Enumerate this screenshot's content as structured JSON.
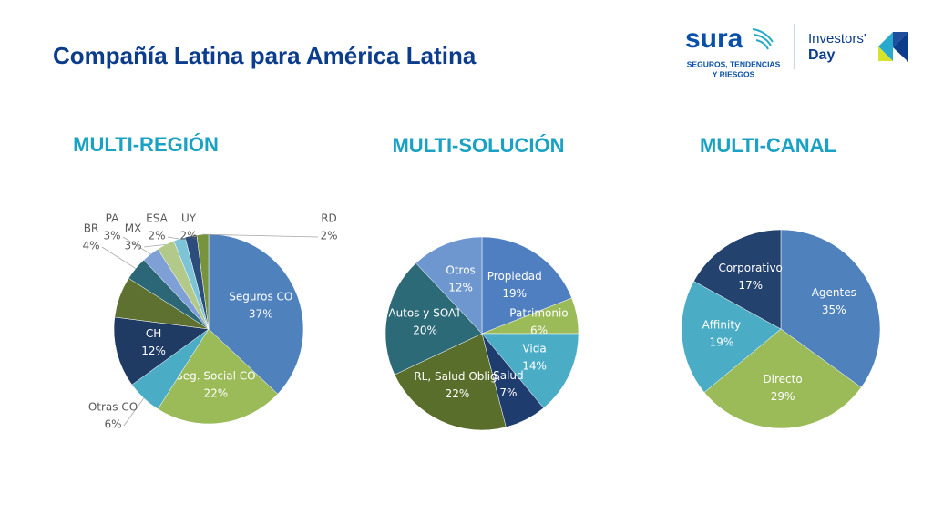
{
  "header": {
    "title": "Compañía Latina para América Latina",
    "logo": "sura",
    "tagline": [
      "SEGUROS, TENDENCIAS",
      "Y RIESGOS"
    ],
    "event": [
      "Investors'",
      "Day"
    ]
  },
  "chart_data": [
    {
      "type": "pie",
      "title": "MULTI-REGIÓN",
      "categories": [
        "Seguros CO",
        "Seg. Social CO",
        "Otras CO",
        "CH",
        null,
        "BR",
        "PA",
        "MX",
        "ESA",
        "UY",
        "RD"
      ],
      "values": [
        37,
        22,
        6,
        12,
        7,
        4,
        3,
        3,
        2,
        2,
        2
      ],
      "value_labels": [
        "37%",
        "22%",
        "6%",
        "12%",
        null,
        "4%",
        "3%",
        "3%",
        "2%",
        "2%",
        "2%"
      ],
      "colors": [
        "#4f81bd",
        "#9bbb59",
        "#4bacc6",
        "#1f3a63",
        "#5f7131",
        "#2b6776",
        "#7ea0d6",
        "#b3c98a",
        "#7ec4d7",
        "#2c4c7c",
        "#77933c"
      ]
    },
    {
      "type": "pie",
      "title": "MULTI-SOLUCIÓN",
      "categories": [
        "Propiedad",
        "Patrimonio",
        "Vida",
        "Salud",
        "RL, Salud Oblig.",
        "Autos y SOAT",
        "Otros"
      ],
      "values": [
        19,
        6,
        14,
        7,
        22,
        20,
        12
      ],
      "value_labels": [
        "19%",
        "6%",
        "14%",
        "7%",
        "22%",
        "20%",
        "12%"
      ],
      "colors": [
        "#4f7fc0",
        "#9bbb59",
        "#4bacc6",
        "#1f3c6e",
        "#5a6e2b",
        "#2c6a78",
        "#6f97cf"
      ]
    },
    {
      "type": "pie",
      "title": "MULTI-CANAL",
      "categories": [
        "Agentes",
        "Directo",
        "Affinity",
        "Corporativo"
      ],
      "values": [
        35,
        29,
        19,
        17
      ],
      "value_labels": [
        "35%",
        "29%",
        "19%",
        "17%"
      ],
      "colors": [
        "#4f81bd",
        "#9bbb59",
        "#4bacc6",
        "#23426e"
      ]
    }
  ]
}
